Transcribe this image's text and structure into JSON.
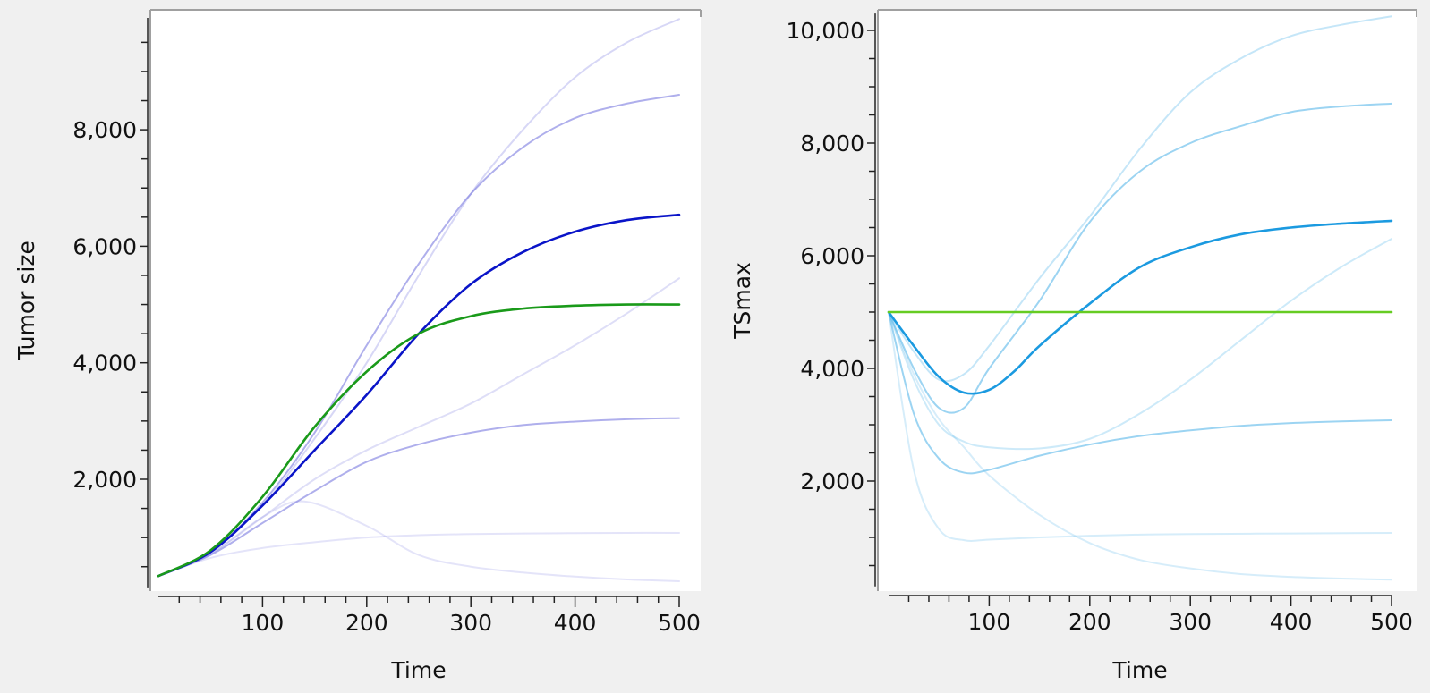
{
  "chart_data": [
    {
      "type": "line",
      "xlabel": "Time",
      "ylabel": "Tumor size",
      "xlim": [
        0,
        500
      ],
      "ylim": [
        130,
        9920
      ],
      "xticks": [
        100,
        200,
        300,
        400,
        500
      ],
      "xtick_labels": [
        "100",
        "200",
        "300",
        "400",
        "500"
      ],
      "xminor_step": 20,
      "yticks": [
        2000,
        4000,
        6000,
        8000
      ],
      "ytick_labels": [
        "2,000",
        "4,000",
        "6,000",
        "8,000"
      ],
      "yminor_step": 500,
      "grid": false,
      "series": [
        {
          "role": "individual",
          "color": "#7a7ae0",
          "opacity": 0.3,
          "x": [
            0,
            50,
            100,
            150,
            200,
            250,
            300,
            350,
            400,
            450,
            500
          ],
          "y": [
            340,
            760,
            1550,
            2700,
            4000,
            5500,
            6900,
            8000,
            8900,
            9500,
            9900
          ]
        },
        {
          "role": "individual",
          "color": "#7a7ae0",
          "opacity": 0.6,
          "x": [
            0,
            50,
            100,
            150,
            200,
            250,
            300,
            350,
            400,
            450,
            500
          ],
          "y": [
            340,
            760,
            1600,
            2800,
            4300,
            5700,
            6900,
            7700,
            8200,
            8450,
            8600
          ]
        },
        {
          "role": "individual",
          "color": "#7a7ae0",
          "opacity": 0.6,
          "x": [
            0,
            50,
            100,
            150,
            200,
            250,
            300,
            350,
            400,
            450,
            500
          ],
          "y": [
            340,
            700,
            1250,
            1800,
            2300,
            2600,
            2800,
            2930,
            2990,
            3030,
            3050
          ]
        },
        {
          "role": "individual",
          "color": "#7a7ae0",
          "opacity": 0.25,
          "x": [
            0,
            50,
            100,
            150,
            200,
            250,
            300,
            350,
            400,
            450,
            500
          ],
          "y": [
            340,
            720,
            1350,
            2000,
            2500,
            2900,
            3300,
            3800,
            4300,
            4850,
            5450
          ]
        },
        {
          "role": "individual",
          "color": "#7a7ae0",
          "opacity": 0.2,
          "x": [
            0,
            50,
            100,
            150,
            200,
            250,
            300,
            350,
            400,
            450,
            500
          ],
          "y": [
            340,
            650,
            820,
            920,
            1000,
            1040,
            1060,
            1070,
            1075,
            1080,
            1080
          ]
        },
        {
          "role": "individual",
          "color": "#7a7ae0",
          "opacity": 0.2,
          "x": [
            0,
            50,
            100,
            140,
            200,
            250,
            300,
            350,
            400,
            450,
            500
          ],
          "y": [
            340,
            720,
            1350,
            1620,
            1200,
            700,
            500,
            400,
            330,
            280,
            250
          ]
        },
        {
          "role": "typical",
          "color": "#0a14c8",
          "opacity": 1,
          "x": [
            0,
            50,
            100,
            150,
            200,
            250,
            300,
            350,
            400,
            450,
            500
          ],
          "y": [
            340,
            750,
            1550,
            2500,
            3450,
            4500,
            5350,
            5900,
            6250,
            6450,
            6540
          ]
        },
        {
          "role": "reference",
          "color": "#1a9a1a",
          "opacity": 1,
          "x": [
            0,
            50,
            100,
            150,
            200,
            250,
            300,
            350,
            400,
            450,
            500
          ],
          "y": [
            340,
            780,
            1700,
            2900,
            3850,
            4500,
            4800,
            4930,
            4980,
            5000,
            5000
          ]
        }
      ]
    },
    {
      "type": "line",
      "xlabel": "Time",
      "ylabel": "TSmax",
      "xlim": [
        0,
        500
      ],
      "ylim": [
        130,
        10300
      ],
      "xticks": [
        100,
        200,
        300,
        400,
        500
      ],
      "xtick_labels": [
        "100",
        "200",
        "300",
        "400",
        "500"
      ],
      "xminor_step": 20,
      "yticks": [
        2000,
        4000,
        6000,
        8000,
        10000
      ],
      "ytick_labels": [
        "2,000",
        "4,000",
        "6,000",
        "8,000",
        "10,000"
      ],
      "yminor_step": 500,
      "grid": false,
      "series": [
        {
          "role": "individual",
          "color": "#5ab8ea",
          "opacity": 0.35,
          "x": [
            0,
            25,
            50,
            75,
            100,
            150,
            200,
            250,
            300,
            350,
            400,
            450,
            500
          ],
          "y": [
            5000,
            4300,
            3800,
            3900,
            4400,
            5600,
            6700,
            7900,
            8900,
            9500,
            9900,
            10100,
            10250
          ]
        },
        {
          "role": "individual",
          "color": "#5ab8ea",
          "opacity": 0.6,
          "x": [
            0,
            25,
            50,
            75,
            100,
            150,
            200,
            250,
            300,
            350,
            400,
            450,
            500
          ],
          "y": [
            5000,
            4000,
            3300,
            3300,
            4000,
            5200,
            6600,
            7500,
            8000,
            8300,
            8550,
            8650,
            8700
          ]
        },
        {
          "role": "individual",
          "color": "#5ab8ea",
          "opacity": 0.6,
          "x": [
            0,
            25,
            50,
            75,
            100,
            150,
            200,
            250,
            300,
            350,
            400,
            450,
            500
          ],
          "y": [
            5000,
            3200,
            2400,
            2150,
            2200,
            2450,
            2650,
            2800,
            2900,
            2980,
            3030,
            3060,
            3080
          ]
        },
        {
          "role": "individual",
          "color": "#5ab8ea",
          "opacity": 0.3,
          "x": [
            0,
            25,
            50,
            75,
            100,
            150,
            200,
            250,
            300,
            350,
            400,
            450,
            500
          ],
          "y": [
            5000,
            3800,
            3000,
            2700,
            2600,
            2580,
            2750,
            3200,
            3800,
            4500,
            5200,
            5800,
            6300
          ]
        },
        {
          "role": "individual",
          "color": "#5ab8ea",
          "opacity": 0.25,
          "x": [
            0,
            25,
            50,
            75,
            100,
            150,
            200,
            250,
            300,
            400,
            500
          ],
          "y": [
            5000,
            2200,
            1150,
            950,
            960,
            1000,
            1030,
            1050,
            1060,
            1070,
            1080
          ]
        },
        {
          "role": "individual",
          "color": "#5ab8ea",
          "opacity": 0.25,
          "x": [
            0,
            25,
            50,
            75,
            100,
            150,
            200,
            250,
            300,
            350,
            400,
            450,
            500
          ],
          "y": [
            5000,
            3900,
            3100,
            2600,
            2100,
            1400,
            900,
            600,
            450,
            350,
            300,
            270,
            250
          ]
        },
        {
          "role": "typical",
          "color": "#1b9ae0",
          "opacity": 1,
          "x": [
            0,
            25,
            50,
            75,
            100,
            125,
            150,
            200,
            250,
            300,
            350,
            400,
            450,
            500
          ],
          "y": [
            5000,
            4400,
            3850,
            3570,
            3620,
            3950,
            4400,
            5150,
            5800,
            6150,
            6380,
            6500,
            6570,
            6620
          ]
        },
        {
          "role": "reference",
          "color": "#66cc22",
          "opacity": 1,
          "x": [
            0,
            500
          ],
          "y": [
            5000,
            5000
          ]
        }
      ]
    }
  ]
}
